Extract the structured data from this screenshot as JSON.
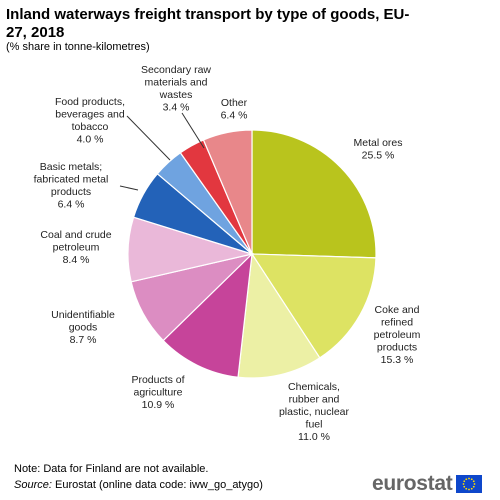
{
  "title": "Inland waterways freight transport by type of goods, EU-27, 2018",
  "subtitle": "(% share in tonne-kilometres)",
  "note": "Note: Data for Finland are not available.",
  "source_label": "Source:",
  "source_text": "Eurostat (online data code: iww_go_atygo)",
  "logo_text": "eurostat",
  "chart_data": {
    "type": "pie",
    "title": "Inland waterways freight transport by type of goods, EU-27, 2018",
    "subtitle": "(% share in tonne-kilometres)",
    "unit": "%",
    "slices": [
      {
        "label": "Metal ores",
        "value": 25.5,
        "value_label": "25.5 %",
        "color": "#b9c41d"
      },
      {
        "label": "Coke and refined petroleum products",
        "value": 15.3,
        "value_label": "15.3 %",
        "color": "#dde363"
      },
      {
        "label": "Chemicals, rubber and plastic, nuclear fuel",
        "value": 11.0,
        "value_label": "11.0 %",
        "color": "#ecf0a5"
      },
      {
        "label": "Products of agriculture",
        "value": 10.9,
        "value_label": "10.9 %",
        "color": "#c6449a"
      },
      {
        "label": "Unidentifiable goods",
        "value": 8.7,
        "value_label": "8.7 %",
        "color": "#dc8dc2"
      },
      {
        "label": "Coal and crude petroleum",
        "value": 8.4,
        "value_label": "8.4 %",
        "color": "#eab8d9"
      },
      {
        "label": "Basic metals; fabricated metal products",
        "value": 6.4,
        "value_label": "6.4 %",
        "color": "#2362b8"
      },
      {
        "label": "Food products, beverages and tobacco",
        "value": 4.0,
        "value_label": "4.0 %",
        "color": "#6fa3e0"
      },
      {
        "label": "Secondary raw materials and wastes",
        "value": 3.4,
        "value_label": "3.4 %",
        "color": "#e2373f"
      },
      {
        "label": "Other",
        "value": 6.4,
        "value_label": "6.4 %",
        "color": "#e8878a"
      }
    ],
    "label_lines": [
      [
        "Metal ores",
        "25.5 %"
      ],
      [
        "Coke and",
        "refined",
        "petroleum",
        "products",
        "15.3 %"
      ],
      [
        "Chemicals,",
        "rubber and",
        "plastic, nuclear",
        "fuel",
        "11.0 %"
      ],
      [
        "Products of",
        "agriculture",
        "10.9 %"
      ],
      [
        "Unidentifiable",
        "goods",
        "8.7 %"
      ],
      [
        "Coal and crude",
        "petroleum",
        "8.4 %"
      ],
      [
        "Basic metals;",
        "fabricated metal",
        "products",
        "6.4 %"
      ],
      [
        "Food products,",
        "beverages  and",
        "tobacco",
        "4.0 %"
      ],
      [
        "Secondary raw",
        "materials and",
        "wastes",
        "3.4 %"
      ],
      [
        "Other",
        "6.4 %"
      ]
    ]
  }
}
